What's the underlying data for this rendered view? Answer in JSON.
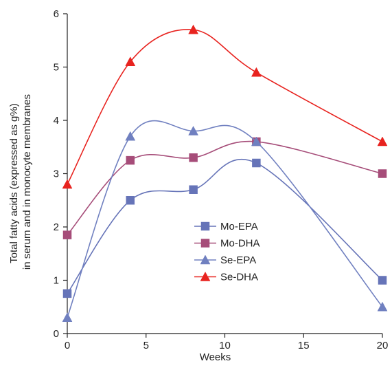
{
  "chart_data": {
    "type": "line",
    "title": "",
    "xlabel": "Weeks",
    "ylabel": [
      "Total fatty acids (expressed as g%)",
      "in serum and in monocyte membranes"
    ],
    "xlim": [
      0,
      20
    ],
    "ylim": [
      0,
      6
    ],
    "xticks": [
      "0",
      "5",
      "10",
      "15",
      "20"
    ],
    "yticks": [
      "0",
      "1",
      "2",
      "3",
      "4",
      "5",
      "6"
    ],
    "grid": false,
    "legend_position": "center",
    "x": [
      0,
      4,
      8,
      12,
      20
    ],
    "series": [
      {
        "name": "Mo-EPA",
        "values": [
          0.75,
          2.5,
          2.7,
          3.2,
          1.0
        ],
        "color": "#6674b8",
        "marker": "square"
      },
      {
        "name": "Mo-DHA",
        "values": [
          1.85,
          3.25,
          3.3,
          3.6,
          3.0
        ],
        "color": "#a64d79",
        "marker": "square"
      },
      {
        "name": "Se-EPA",
        "values": [
          0.3,
          3.7,
          3.8,
          3.6,
          0.5
        ],
        "color": "#7080c0",
        "marker": "triangle"
      },
      {
        "name": "Se-DHA",
        "values": [
          2.8,
          5.1,
          5.7,
          4.9,
          3.6
        ],
        "color": "#e8231f",
        "marker": "triangle"
      }
    ]
  }
}
